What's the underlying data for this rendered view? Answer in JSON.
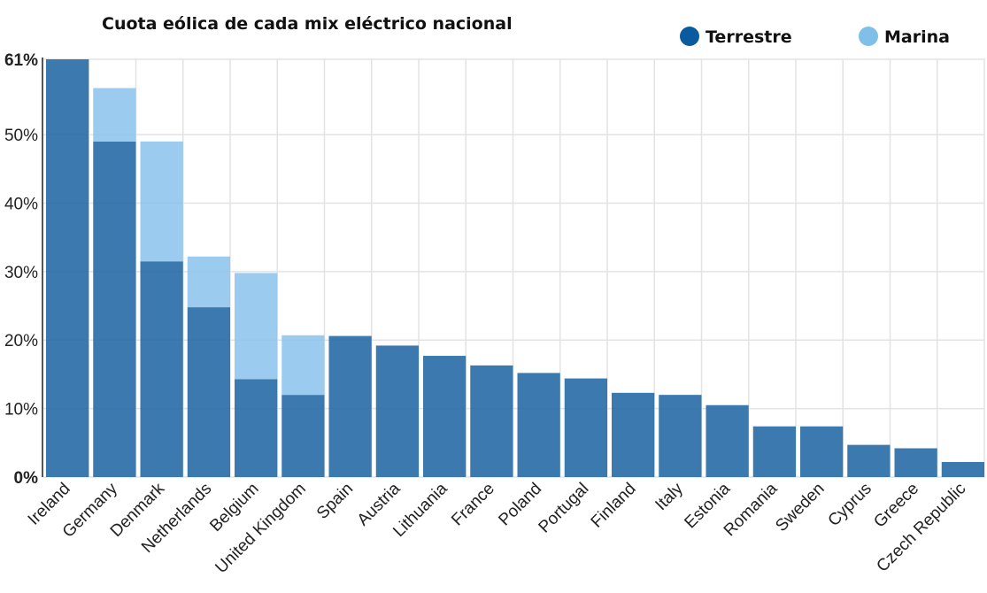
{
  "chart_data": {
    "type": "bar",
    "stacked": true,
    "title": "Cuota eólica de cada mix eléctrico nacional",
    "xlabel": "",
    "ylabel": "",
    "ylim": [
      0,
      61
    ],
    "y_ticks": [
      "0%",
      "10%",
      "20%",
      "30%",
      "40%",
      "50%",
      "61%"
    ],
    "y_tick_values": [
      0,
      10,
      20,
      30,
      40,
      50,
      61
    ],
    "grid": true,
    "legend_position": "top-right",
    "categories": [
      "Ireland",
      "Germany",
      "Denmark",
      "Netherlands",
      "Belgium",
      "United Kingdom",
      "Spain",
      "Austria",
      "Lithuania",
      "France",
      "Poland",
      "Portugal",
      "Finland",
      "Italy",
      "Estonia",
      "Romania",
      "Sweden",
      "Cyprus",
      "Greece",
      "Czech Republic"
    ],
    "series": [
      {
        "name": "Terrestre",
        "color": "#2166a3",
        "values": [
          61,
          49,
          31.5,
          24.8,
          14.3,
          12,
          20.6,
          19.2,
          17.7,
          16.3,
          15.2,
          14.4,
          12.3,
          12,
          10.5,
          7.4,
          7.4,
          4.7,
          4.2,
          2.2
        ]
      },
      {
        "name": "Marina",
        "color": "#89c3ec",
        "values": [
          0,
          7.8,
          17.5,
          7.4,
          15.5,
          8.7,
          0,
          0,
          0,
          0,
          0,
          0,
          0,
          0,
          0,
          0,
          0,
          0,
          0,
          0
        ]
      }
    ]
  }
}
